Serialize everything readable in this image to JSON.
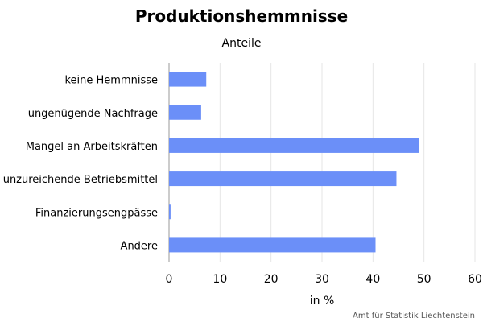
{
  "chart_data": {
    "type": "bar",
    "orientation": "horizontal",
    "title": "Produktionshemmnisse",
    "subtitle": "Anteile",
    "categories": [
      "keine Hemmnisse",
      "ungenügende Nachfrage",
      "Mangel an Arbeitskräften",
      "unzureichende Betriebsmittel",
      "Finanzierungsengpässe",
      "Andere"
    ],
    "values": [
      7.3,
      6.3,
      49.0,
      44.6,
      0.3,
      40.5
    ],
    "xlabel": "in %",
    "ylabel": "",
    "xlim": [
      0,
      60
    ],
    "xticks": [
      0,
      10,
      20,
      30,
      40,
      50,
      60
    ],
    "grid": true,
    "bar_color": "#6b8ff8",
    "source": "Amt für Statistik Liechtenstein"
  }
}
